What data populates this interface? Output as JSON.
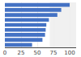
{
  "chart_data": {
    "type": "bar",
    "orientation": "horizontal",
    "categories": [
      null,
      null,
      null,
      null,
      null,
      null,
      null,
      null,
      null
    ],
    "values": [
      100,
      87,
      81,
      68,
      64,
      63,
      62,
      58,
      42
    ],
    "color": "#4472c4",
    "xlim": [
      0,
      110
    ],
    "xticks": [
      0,
      25,
      50,
      75,
      100
    ],
    "grid": true,
    "tick_labels": "x"
  }
}
